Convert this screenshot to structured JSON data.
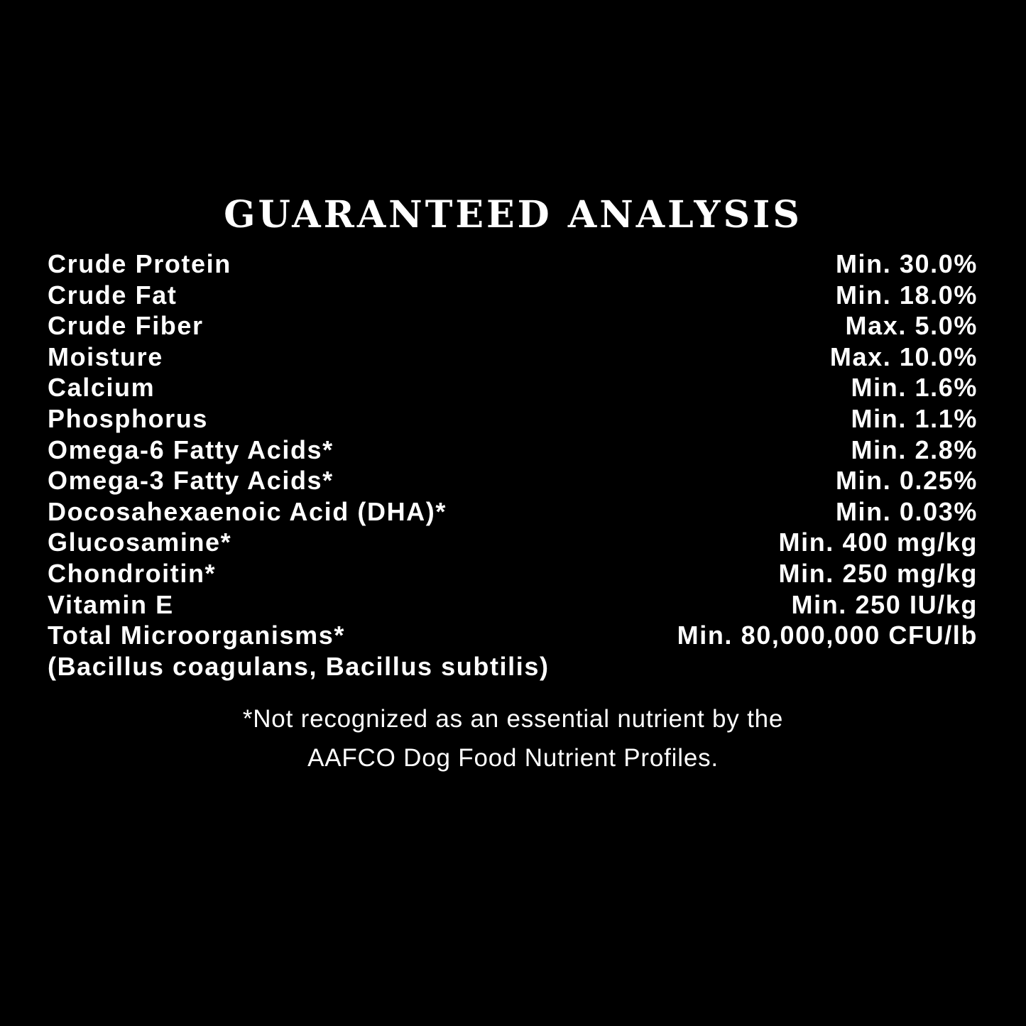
{
  "title": "GUARANTEED ANALYSIS",
  "rows": [
    {
      "label": "Crude Protein",
      "value": "Min. 30.0%"
    },
    {
      "label": "Crude Fat",
      "value": "Min. 18.0%"
    },
    {
      "label": "Crude Fiber",
      "value": "Max. 5.0%"
    },
    {
      "label": "Moisture",
      "value": "Max. 10.0%"
    },
    {
      "label": "Calcium",
      "value": "Min. 1.6%"
    },
    {
      "label": "Phosphorus",
      "value": "Min. 1.1%"
    },
    {
      "label": "Omega-6 Fatty Acids*",
      "value": "Min. 2.8%"
    },
    {
      "label": "Omega-3 Fatty Acids*",
      "value": "Min. 0.25%"
    },
    {
      "label": "Docosahexaenoic Acid (DHA)*",
      "value": "Min. 0.03%"
    },
    {
      "label": "Glucosamine*",
      "value": "Min. 400 mg/kg"
    },
    {
      "label": "Chondroitin*",
      "value": "Min. 250 mg/kg"
    },
    {
      "label": "Vitamin E",
      "value": "Min. 250 IU/kg"
    },
    {
      "label": "Total Microorganisms*",
      "value": "Min. 80,000,000 CFU/lb"
    },
    {
      "label": "(Bacillus coagulans, Bacillus subtilis)",
      "value": ""
    }
  ],
  "footnote": {
    "line1": "*Not recognized as an essential nutrient by the",
    "line2": "AAFCO Dog Food Nutrient Profiles."
  }
}
